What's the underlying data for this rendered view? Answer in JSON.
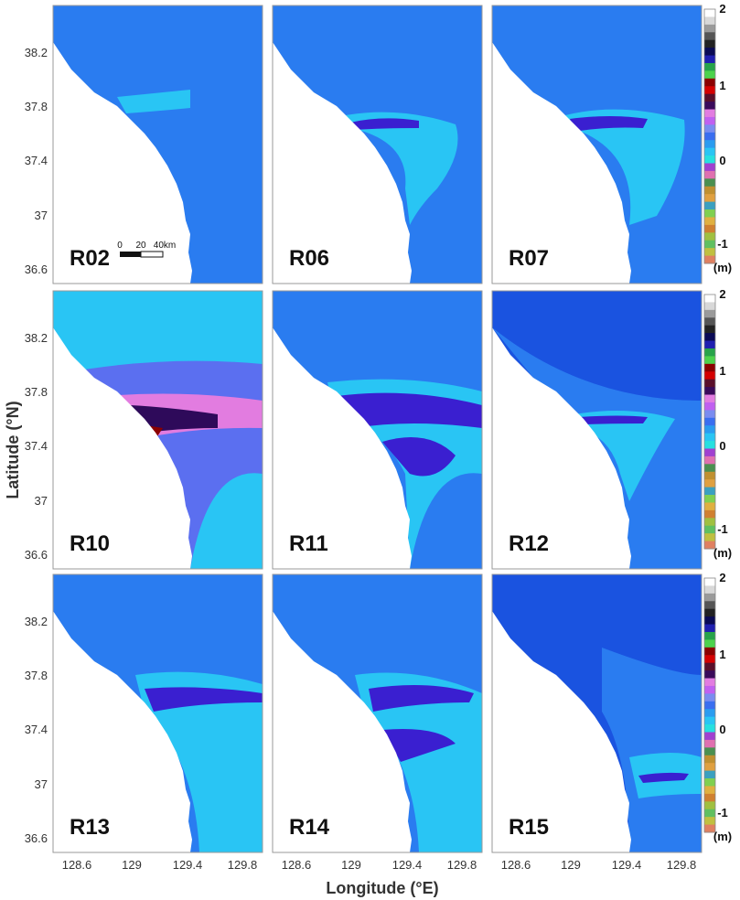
{
  "axes": {
    "y_title": "Latitude (°N)",
    "x_title": "Longitude (°E)",
    "lat_ticks": [
      "38.2",
      "37.8",
      "37.4",
      "37",
      "36.6"
    ],
    "lon_ticks": [
      "128.6",
      "129",
      "129.4",
      "129.8"
    ]
  },
  "panels": [
    {
      "label": "R02"
    },
    {
      "label": "R06"
    },
    {
      "label": "R07"
    },
    {
      "label": "R10"
    },
    {
      "label": "R11"
    },
    {
      "label": "R12"
    },
    {
      "label": "R13"
    },
    {
      "label": "R14"
    },
    {
      "label": "R15"
    }
  ],
  "scale_bar": {
    "labels": [
      "0",
      "20",
      "40km"
    ]
  },
  "colorbar": {
    "labels": [
      "2",
      "1",
      "0",
      "-1",
      "(m)"
    ],
    "colors": {
      "sea_deep": "#1a53e0",
      "sea_mid": "#2a7cf0",
      "sea_light": "#29c5f4",
      "land": "#ffffff",
      "crest": "#3a1fd0",
      "max": "#2e0a5a",
      "hot": "#8b0000",
      "pink": "#e27ce0"
    }
  }
}
